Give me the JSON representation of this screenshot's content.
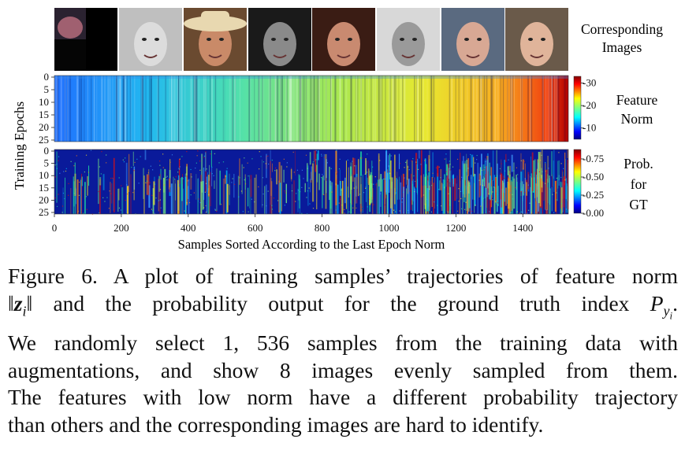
{
  "figure": {
    "images_label": [
      "Corresponding",
      "Images"
    ],
    "image_thumbnails": [
      {
        "name": "face-thumbnail-1",
        "bg": "#2a2230",
        "skin": "#a06070",
        "note": "dark, cropped low-norm sample"
      },
      {
        "name": "face-thumbnail-2",
        "bg": "#bfbfbf",
        "skin": "#dcdcdc",
        "note": "grayscale pixelated face"
      },
      {
        "name": "face-thumbnail-3",
        "bg": "#6a4a30",
        "skin": "#c98a68",
        "note": "man with hat"
      },
      {
        "name": "face-thumbnail-4",
        "bg": "#1a1a1a",
        "skin": "#8a8a8a",
        "note": "grayscale face"
      },
      {
        "name": "face-thumbnail-5",
        "bg": "#3a1c14",
        "skin": "#c98a70",
        "note": "woman with dark hair"
      },
      {
        "name": "face-thumbnail-6",
        "bg": "#d8d8d8",
        "skin": "#9a9a9a",
        "note": "grayscale child"
      },
      {
        "name": "face-thumbnail-7",
        "bg": "#5a6a80",
        "skin": "#d8a894",
        "note": "bald man"
      },
      {
        "name": "face-thumbnail-8",
        "bg": "#6a5a4a",
        "skin": "#e0b49a",
        "note": "woman with light hair"
      }
    ],
    "y_axis_label": "Training Epochs",
    "x_axis_label": "Samples Sorted According to the Last Epoch Norm",
    "panel_labels": {
      "feature_norm": [
        "Feature",
        "Norm"
      ],
      "prob": [
        "Prob.",
        "for",
        "GT"
      ]
    }
  },
  "chart_data": [
    {
      "type": "heatmap",
      "name": "feature-norm",
      "x": {
        "range": [
          0,
          1536
        ],
        "ticks": [
          0,
          200,
          400,
          600,
          800,
          1000,
          1200,
          1400
        ]
      },
      "y": {
        "range": [
          0,
          25
        ],
        "ticks": [
          0,
          5,
          10,
          15,
          20,
          25
        ]
      },
      "colorbar": {
        "range": [
          5,
          33
        ],
        "ticks": [
          10,
          20,
          30
        ],
        "colormap": "jet"
      },
      "description_values": {
        "low_norm_start": 10,
        "high_norm_end": 32
      }
    },
    {
      "type": "heatmap",
      "name": "prob-for-gt",
      "x": {
        "range": [
          0,
          1536
        ],
        "ticks": [
          0,
          200,
          400,
          600,
          800,
          1000,
          1200,
          1400
        ]
      },
      "y": {
        "range": [
          0,
          25
        ],
        "ticks": [
          0,
          5,
          10,
          15,
          20,
          25
        ]
      },
      "colorbar": {
        "range": [
          0,
          0.88
        ],
        "ticks": [
          "0.00",
          "0.25",
          "0.50",
          "0.75"
        ],
        "colormap": "jet"
      }
    }
  ],
  "caption": {
    "fig_label": "Figure 6.",
    "line1_rest": "A plot of training samples’ trajectories of feature norm",
    "norm_open": "‖",
    "z": "z",
    "sub_i": "i",
    "norm_close": "‖",
    "line2_text": " and the probability output for the ground truth index ",
    "P": "P",
    "sub_y": "y",
    "sub_yi": "i",
    "period": ".",
    "line3": "We randomly select 1, 536 samples from the training data with",
    "line4": "augmentations, and show 8 images evenly sampled from them.",
    "line5": "The features with low norm have a different probability trajectory",
    "line6": "than others and the corresponding images are hard to identify."
  }
}
